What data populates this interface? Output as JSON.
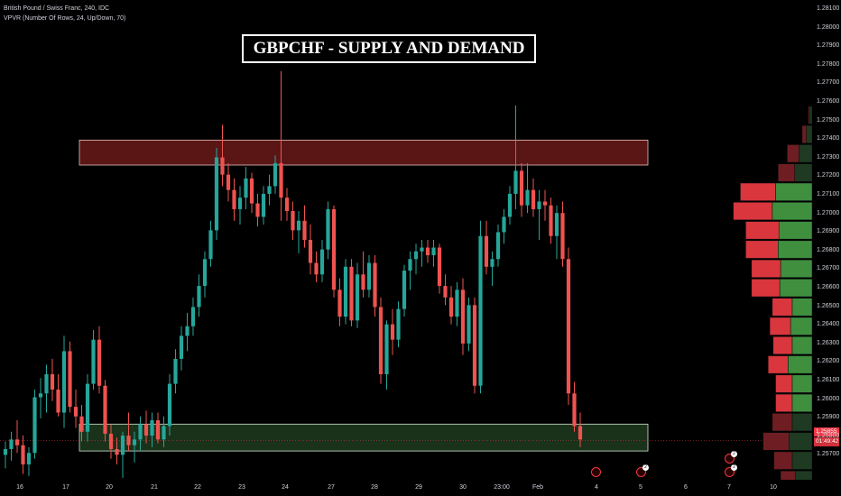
{
  "legend": {
    "symbol_line": "British Pound / Swiss Franc, 240, IDC",
    "indicator_line": "VPVR (Number Of Rows, 24, Up/Down, 70)"
  },
  "title": "GBPCHF - SUPPLY AND DEMAND",
  "colors": {
    "background": "#000000",
    "up_candle": "#26a69a",
    "down_candle": "#ef5350",
    "supply_zone": "#5a1515",
    "demand_zone": "#1e3a1e",
    "vpvr_up": "#3f8f3f",
    "vpvr_down": "#d9363e"
  },
  "price_axis": {
    "labels": [
      "1.28100",
      "1.28000",
      "1.27900",
      "1.27800",
      "1.27700",
      "1.27600",
      "1.27500",
      "1.27400",
      "1.27300",
      "1.27200",
      "1.27100",
      "1.27000",
      "1.26900",
      "1.26800",
      "1.26700",
      "1.26600",
      "1.26500",
      "1.26400",
      "1.26300",
      "1.26200",
      "1.26100",
      "1.26000",
      "1.25900",
      "1.25800",
      "1.25700"
    ],
    "last_price": "1.25855",
    "countdown": "01:49:42"
  },
  "time_axis": {
    "labels": [
      "16",
      "17",
      "20",
      "21",
      "22",
      "23",
      "24",
      "27",
      "28",
      "29",
      "30",
      "23:00",
      "Feb",
      "4",
      "5",
      "6",
      "7",
      "10"
    ]
  },
  "zones": {
    "supply": {
      "top": 1.2742,
      "bottom": 1.2729
    },
    "demand": {
      "top": 1.2594,
      "bottom": 1.258
    }
  },
  "current_price": 1.25855,
  "chart_data": {
    "type": "candlestick",
    "series_note": "",
    "ylim": [
      1.2565,
      1.2815
    ],
    "candles": [
      [
        1.2578,
        1.2585,
        1.2571,
        1.2581
      ],
      [
        1.2581,
        1.259,
        1.2575,
        1.2586
      ],
      [
        1.2586,
        1.2596,
        1.2579,
        1.2583
      ],
      [
        1.2583,
        1.2588,
        1.2568,
        1.2573
      ],
      [
        1.2573,
        1.2582,
        1.2567,
        1.2579
      ],
      [
        1.2579,
        1.2612,
        1.2576,
        1.2608
      ],
      [
        1.2608,
        1.2618,
        1.2597,
        1.261
      ],
      [
        1.261,
        1.2625,
        1.26,
        1.262
      ],
      [
        1.262,
        1.2628,
        1.2606,
        1.2612
      ],
      [
        1.2612,
        1.262,
        1.2598,
        1.26
      ],
      [
        1.26,
        1.264,
        1.2592,
        1.2632
      ],
      [
        1.2632,
        1.2637,
        1.26,
        1.2603
      ],
      [
        1.2603,
        1.2612,
        1.2592,
        1.2598
      ],
      [
        1.2598,
        1.2604,
        1.2585,
        1.259
      ],
      [
        1.259,
        1.262,
        1.2585,
        1.2615
      ],
      [
        1.2615,
        1.2643,
        1.2612,
        1.2638
      ],
      [
        1.2638,
        1.2645,
        1.261,
        1.2614
      ],
      [
        1.2614,
        1.2617,
        1.2585,
        1.2589
      ],
      [
        1.2589,
        1.2594,
        1.2576,
        1.2581
      ],
      [
        1.2581,
        1.2587,
        1.2573,
        1.2578
      ],
      [
        1.2578,
        1.259,
        1.2566,
        1.2588
      ],
      [
        1.2588,
        1.26,
        1.258,
        1.2583
      ],
      [
        1.2583,
        1.259,
        1.2574,
        1.2586
      ],
      [
        1.2586,
        1.2598,
        1.258,
        1.2594
      ],
      [
        1.2594,
        1.2601,
        1.2584,
        1.2588
      ],
      [
        1.2588,
        1.26,
        1.2582,
        1.2596
      ],
      [
        1.2596,
        1.26,
        1.2584,
        1.2586
      ],
      [
        1.2586,
        1.2598,
        1.2582,
        1.2593
      ],
      [
        1.2593,
        1.262,
        1.2588,
        1.2615
      ],
      [
        1.2615,
        1.2633,
        1.261,
        1.2628
      ],
      [
        1.2628,
        1.2645,
        1.2622,
        1.264
      ],
      [
        1.264,
        1.2652,
        1.2632,
        1.2645
      ],
      [
        1.2645,
        1.266,
        1.264,
        1.2655
      ],
      [
        1.2655,
        1.2672,
        1.265,
        1.2666
      ],
      [
        1.2666,
        1.2684,
        1.266,
        1.268
      ],
      [
        1.268,
        1.27,
        1.2676,
        1.2695
      ],
      [
        1.2695,
        1.2738,
        1.269,
        1.2733
      ],
      [
        1.2733,
        1.275,
        1.2718,
        1.2724
      ],
      [
        1.2724,
        1.273,
        1.271,
        1.2716
      ],
      [
        1.2716,
        1.2722,
        1.27,
        1.2706
      ],
      [
        1.2706,
        1.2718,
        1.2698,
        1.2712
      ],
      [
        1.2712,
        1.2728,
        1.2706,
        1.2722
      ],
      [
        1.2722,
        1.2725,
        1.2704,
        1.2709
      ],
      [
        1.2709,
        1.2714,
        1.2697,
        1.2702
      ],
      [
        1.2702,
        1.2718,
        1.2698,
        1.2714
      ],
      [
        1.2714,
        1.2724,
        1.2708,
        1.2718
      ],
      [
        1.2718,
        1.2734,
        1.2714,
        1.273
      ],
      [
        1.273,
        1.2778,
        1.27,
        1.2712
      ],
      [
        1.2712,
        1.2717,
        1.27,
        1.2705
      ],
      [
        1.2705,
        1.271,
        1.269,
        1.2695
      ],
      [
        1.2695,
        1.2705,
        1.2683,
        1.27
      ],
      [
        1.27,
        1.2708,
        1.2686,
        1.269
      ],
      [
        1.269,
        1.2698,
        1.2672,
        1.2678
      ],
      [
        1.2678,
        1.2684,
        1.2668,
        1.2672
      ],
      [
        1.2672,
        1.269,
        1.2668,
        1.2685
      ],
      [
        1.2685,
        1.271,
        1.268,
        1.2706
      ],
      [
        1.2706,
        1.2708,
        1.266,
        1.2664
      ],
      [
        1.2664,
        1.267,
        1.2645,
        1.265
      ],
      [
        1.265,
        1.268,
        1.2646,
        1.2676
      ],
      [
        1.2676,
        1.268,
        1.2645,
        1.2648
      ],
      [
        1.2648,
        1.2678,
        1.2644,
        1.2672
      ],
      [
        1.2672,
        1.2684,
        1.266,
        1.2664
      ],
      [
        1.2664,
        1.2682,
        1.266,
        1.2678
      ],
      [
        1.2678,
        1.2682,
        1.265,
        1.2655
      ],
      [
        1.2655,
        1.266,
        1.2615,
        1.262
      ],
      [
        1.262,
        1.2648,
        1.2612,
        1.2646
      ],
      [
        1.2646,
        1.2654,
        1.263,
        1.2638
      ],
      [
        1.2638,
        1.2658,
        1.2634,
        1.2654
      ],
      [
        1.2654,
        1.2677,
        1.265,
        1.2674
      ],
      [
        1.2674,
        1.2684,
        1.2664,
        1.268
      ],
      [
        1.268,
        1.2688,
        1.2672,
        1.2684
      ],
      [
        1.2684,
        1.269,
        1.2676,
        1.2686
      ],
      [
        1.2686,
        1.269,
        1.2678,
        1.2682
      ],
      [
        1.2682,
        1.269,
        1.2676,
        1.2686
      ],
      [
        1.2686,
        1.2688,
        1.2662,
        1.2666
      ],
      [
        1.2666,
        1.2672,
        1.2656,
        1.266
      ],
      [
        1.266,
        1.2666,
        1.2646,
        1.265
      ],
      [
        1.265,
        1.2668,
        1.2645,
        1.2664
      ],
      [
        1.2664,
        1.267,
        1.263,
        1.2636
      ],
      [
        1.2636,
        1.266,
        1.2632,
        1.2656
      ],
      [
        1.2656,
        1.266,
        1.261,
        1.2614
      ],
      [
        1.2614,
        1.27,
        1.261,
        1.2692
      ],
      [
        1.2692,
        1.27,
        1.2672,
        1.2676
      ],
      [
        1.2676,
        1.2684,
        1.2666,
        1.268
      ],
      [
        1.268,
        1.2698,
        1.2676,
        1.2694
      ],
      [
        1.2694,
        1.2706,
        1.2688,
        1.2702
      ],
      [
        1.2702,
        1.2718,
        1.2698,
        1.2714
      ],
      [
        1.2714,
        1.276,
        1.2706,
        1.2726
      ],
      [
        1.2726,
        1.273,
        1.2702,
        1.2708
      ],
      [
        1.2708,
        1.273,
        1.2704,
        1.2716
      ],
      [
        1.2716,
        1.2722,
        1.2702,
        1.2706
      ],
      [
        1.2706,
        1.2716,
        1.269,
        1.271
      ],
      [
        1.271,
        1.2716,
        1.27,
        1.2708
      ],
      [
        1.2708,
        1.2712,
        1.2688,
        1.2692
      ],
      [
        1.2692,
        1.2708,
        1.268,
        1.2704
      ],
      [
        1.2704,
        1.271,
        1.2676,
        1.268
      ],
      [
        1.268,
        1.2686,
        1.2604,
        1.261
      ],
      [
        1.261,
        1.2616,
        1.259,
        1.2593
      ],
      [
        1.2593,
        1.26,
        1.2582,
        1.2586
      ]
    ],
    "vpvr_note": "",
    "vpvr_rows": [
      {
        "price": 1.2755,
        "up": 6,
        "down": 3
      },
      {
        "price": 1.2745,
        "up": 14,
        "down": 10
      },
      {
        "price": 1.2735,
        "up": 32,
        "down": 28
      },
      {
        "price": 1.2725,
        "up": 42,
        "down": 40
      },
      {
        "price": 1.2715,
        "up": 88,
        "down": 85
      },
      {
        "price": 1.2705,
        "up": 96,
        "down": 94
      },
      {
        "price": 1.2695,
        "up": 80,
        "down": 80
      },
      {
        "price": 1.2685,
        "up": 82,
        "down": 78
      },
      {
        "price": 1.2675,
        "up": 76,
        "down": 70
      },
      {
        "price": 1.2665,
        "up": 78,
        "down": 68
      },
      {
        "price": 1.2655,
        "up": 48,
        "down": 48
      },
      {
        "price": 1.2645,
        "up": 52,
        "down": 50
      },
      {
        "price": 1.2635,
        "up": 48,
        "down": 46
      },
      {
        "price": 1.2625,
        "up": 58,
        "down": 48
      },
      {
        "price": 1.2615,
        "up": 48,
        "down": 40
      },
      {
        "price": 1.2605,
        "up": 48,
        "down": 40
      },
      {
        "price": 1.2595,
        "up": 48,
        "down": 48
      },
      {
        "price": 1.2585,
        "up": 56,
        "down": 62
      },
      {
        "price": 1.2575,
        "up": 48,
        "down": 44
      },
      {
        "price": 1.2565,
        "up": 40,
        "down": 36
      },
      {
        "price": 1.2555,
        "up": 30,
        "down": 28
      }
    ]
  },
  "events": [
    {
      "label": "",
      "badge": ""
    },
    {
      "label": "",
      "badge": "2"
    },
    {
      "label": "",
      "badge": "2"
    },
    {
      "label": "",
      "badge": "2"
    }
  ]
}
